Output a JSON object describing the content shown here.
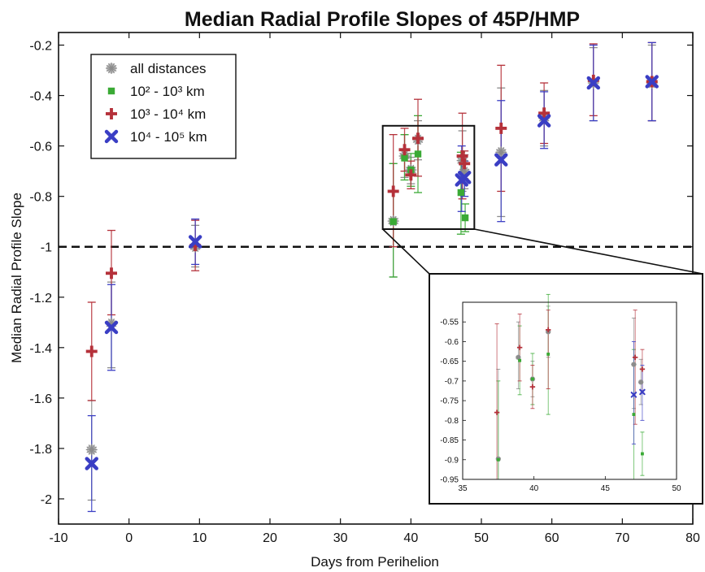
{
  "chart_data": [
    {
      "type": "scatter",
      "title": "Median Radial Profile Slopes of 45P/HMP",
      "xlabel": "Days from Perihelion",
      "ylabel": "Median Radial Profile Slope",
      "xlim": [
        -10,
        80
      ],
      "ylim": [
        -2.1,
        -0.15
      ],
      "xticks": [
        -10,
        0,
        10,
        20,
        30,
        40,
        50,
        60,
        70,
        80
      ],
      "yticks": [
        -2,
        -1.8,
        -1.6,
        -1.4,
        -1.2,
        -1,
        -0.8,
        -0.6,
        -0.4,
        -0.2
      ],
      "reference_line": {
        "y": -1,
        "style": "dashed",
        "color": "#000000"
      },
      "grid": false,
      "legend_position": "top-left",
      "zoom_box": {
        "x": [
          36,
          49
        ],
        "y": [
          -0.93,
          -0.52
        ]
      },
      "series": [
        {
          "name": "all distances",
          "marker": "asterisk",
          "color": "#8c8c8c",
          "points": [
            {
              "x": -5.3,
              "y": -1.805,
              "lo": -2.005,
              "hi": -1.61
            },
            {
              "x": -2.5,
              "y": -1.305,
              "lo": -1.48,
              "hi": -1.14
            },
            {
              "x": 9.4,
              "y": -1.0,
              "lo": -1.08,
              "hi": -0.915
            },
            {
              "x": 37.5,
              "y": -0.898,
              "lo": -1.12,
              "hi": -0.67
            },
            {
              "x": 39.1,
              "y": -0.64,
              "lo": -0.725,
              "hi": -0.555
            },
            {
              "x": 40.0,
              "y": -0.695,
              "lo": -0.75,
              "hi": -0.645
            },
            {
              "x": 41.0,
              "y": -0.575,
              "lo": -0.655,
              "hi": -0.5
            },
            {
              "x": 47.3,
              "y": -0.658,
              "lo": -0.78,
              "hi": -0.54
            },
            {
              "x": 47.6,
              "y": -0.703,
              "lo": -0.77,
              "hi": -0.635
            },
            {
              "x": 52.8,
              "y": -0.625,
              "lo": -0.88,
              "hi": -0.37
            },
            {
              "x": 58.9,
              "y": -0.49,
              "lo": -0.6,
              "hi": -0.38
            },
            {
              "x": 65.9,
              "y": -0.35,
              "lo": -0.5,
              "hi": -0.21
            },
            {
              "x": 74.2,
              "y": -0.35,
              "lo": -0.5,
              "hi": -0.2
            }
          ]
        },
        {
          "name": "10² - 10³ km",
          "marker": "square",
          "color": "#3aaa35",
          "points": [
            {
              "x": 37.5,
              "y": -0.9,
              "lo": -1.12,
              "hi": -0.67
            },
            {
              "x": 39.1,
              "y": -0.648,
              "lo": -0.735,
              "hi": -0.555
            },
            {
              "x": 40.0,
              "y": -0.695,
              "lo": -0.76,
              "hi": -0.63
            },
            {
              "x": 41.0,
              "y": -0.632,
              "lo": -0.785,
              "hi": -0.48
            },
            {
              "x": 47.1,
              "y": -0.785,
              "lo": -0.95,
              "hi": -0.625
            },
            {
              "x": 47.7,
              "y": -0.885,
              "lo": -0.94,
              "hi": -0.83
            }
          ]
        },
        {
          "name": "10³ - 10⁴ km",
          "marker": "plus",
          "color": "#b5313a",
          "points": [
            {
              "x": -5.3,
              "y": -1.415,
              "lo": -1.61,
              "hi": -1.22
            },
            {
              "x": -2.5,
              "y": -1.105,
              "lo": -1.27,
              "hi": -0.935
            },
            {
              "x": 9.4,
              "y": -0.995,
              "lo": -1.095,
              "hi": -0.895
            },
            {
              "x": 37.5,
              "y": -0.78,
              "lo": -1.0,
              "hi": -0.555
            },
            {
              "x": 39.1,
              "y": -0.615,
              "lo": -0.7,
              "hi": -0.53
            },
            {
              "x": 40.0,
              "y": -0.715,
              "lo": -0.77,
              "hi": -0.66
            },
            {
              "x": 41.0,
              "y": -0.57,
              "lo": -0.72,
              "hi": -0.415
            },
            {
              "x": 47.3,
              "y": -0.64,
              "lo": -0.81,
              "hi": -0.47
            },
            {
              "x": 47.6,
              "y": -0.67,
              "lo": -0.73,
              "hi": -0.62
            },
            {
              "x": 52.8,
              "y": -0.53,
              "lo": -0.78,
              "hi": -0.28
            },
            {
              "x": 58.9,
              "y": -0.47,
              "lo": -0.59,
              "hi": -0.35
            },
            {
              "x": 65.9,
              "y": -0.34,
              "lo": -0.48,
              "hi": -0.195
            },
            {
              "x": 74.2,
              "y": -0.345,
              "lo": -0.5,
              "hi": -0.19
            }
          ]
        },
        {
          "name": "10⁴ - 10⁵ km",
          "marker": "x",
          "color": "#3a3ec4",
          "points": [
            {
              "x": -5.3,
              "y": -1.86,
              "lo": -2.05,
              "hi": -1.67
            },
            {
              "x": -2.5,
              "y": -1.32,
              "lo": -1.49,
              "hi": -1.15
            },
            {
              "x": 9.4,
              "y": -0.98,
              "lo": -1.07,
              "hi": -0.89
            },
            {
              "x": 47.2,
              "y": -0.735,
              "lo": -0.86,
              "hi": -0.6
            },
            {
              "x": 47.6,
              "y": -0.725,
              "lo": -0.8,
              "hi": -0.66
            },
            {
              "x": 52.8,
              "y": -0.655,
              "lo": -0.9,
              "hi": -0.42
            },
            {
              "x": 58.9,
              "y": -0.5,
              "lo": -0.61,
              "hi": -0.385
            },
            {
              "x": 65.9,
              "y": -0.35,
              "lo": -0.5,
              "hi": -0.2
            },
            {
              "x": 74.2,
              "y": -0.345,
              "lo": -0.5,
              "hi": -0.19
            }
          ]
        }
      ]
    },
    {
      "type": "scatter",
      "role": "inset",
      "title": "",
      "xlim": [
        35,
        50
      ],
      "ylim": [
        -0.95,
        -0.5
      ],
      "xticks": [
        35,
        40,
        45,
        50
      ],
      "yticks": [
        -0.95,
        -0.9,
        -0.85,
        -0.8,
        -0.75,
        -0.7,
        -0.65,
        -0.6,
        -0.55
      ],
      "series": [
        {
          "name": "all distances",
          "color": "#8c8c8c",
          "points": [
            {
              "x": 37.5,
              "y": -0.898,
              "lo": -0.95,
              "hi": -0.67
            },
            {
              "x": 38.9,
              "y": -0.64,
              "lo": -0.72,
              "hi": -0.55
            },
            {
              "x": 39.9,
              "y": -0.695,
              "lo": -0.74,
              "hi": -0.65
            },
            {
              "x": 41.0,
              "y": -0.575,
              "lo": -0.64,
              "hi": -0.51
            },
            {
              "x": 47.0,
              "y": -0.658,
              "lo": -0.77,
              "hi": -0.54
            },
            {
              "x": 47.5,
              "y": -0.703,
              "lo": -0.76,
              "hi": -0.645
            }
          ]
        },
        {
          "name": "10² - 10³ km",
          "color": "#3aaa35",
          "points": [
            {
              "x": 37.5,
              "y": -0.9,
              "lo": -0.95,
              "hi": -0.7
            },
            {
              "x": 39.0,
              "y": -0.648,
              "lo": -0.735,
              "hi": -0.56
            },
            {
              "x": 39.9,
              "y": -0.695,
              "lo": -0.76,
              "hi": -0.63
            },
            {
              "x": 41.0,
              "y": -0.632,
              "lo": -0.785,
              "hi": -0.48
            },
            {
              "x": 47.0,
              "y": -0.785,
              "lo": -0.95,
              "hi": -0.62
            },
            {
              "x": 47.6,
              "y": -0.885,
              "lo": -0.94,
              "hi": -0.83
            }
          ]
        },
        {
          "name": "10³ - 10⁴ km",
          "color": "#b5313a",
          "points": [
            {
              "x": 37.4,
              "y": -0.78,
              "lo": -0.95,
              "hi": -0.555
            },
            {
              "x": 39.0,
              "y": -0.615,
              "lo": -0.7,
              "hi": -0.53
            },
            {
              "x": 39.9,
              "y": -0.715,
              "lo": -0.77,
              "hi": -0.66
            },
            {
              "x": 41.0,
              "y": -0.57,
              "lo": -0.72,
              "hi": -0.52
            },
            {
              "x": 47.1,
              "y": -0.64,
              "lo": -0.81,
              "hi": -0.52
            },
            {
              "x": 47.6,
              "y": -0.67,
              "lo": -0.73,
              "hi": -0.62
            }
          ]
        },
        {
          "name": "10⁴ - 10⁵ km",
          "color": "#3a3ec4",
          "points": [
            {
              "x": 47.0,
              "y": -0.735,
              "lo": -0.86,
              "hi": -0.6
            },
            {
              "x": 47.6,
              "y": -0.728,
              "lo": -0.8,
              "hi": -0.66
            }
          ]
        }
      ]
    }
  ]
}
